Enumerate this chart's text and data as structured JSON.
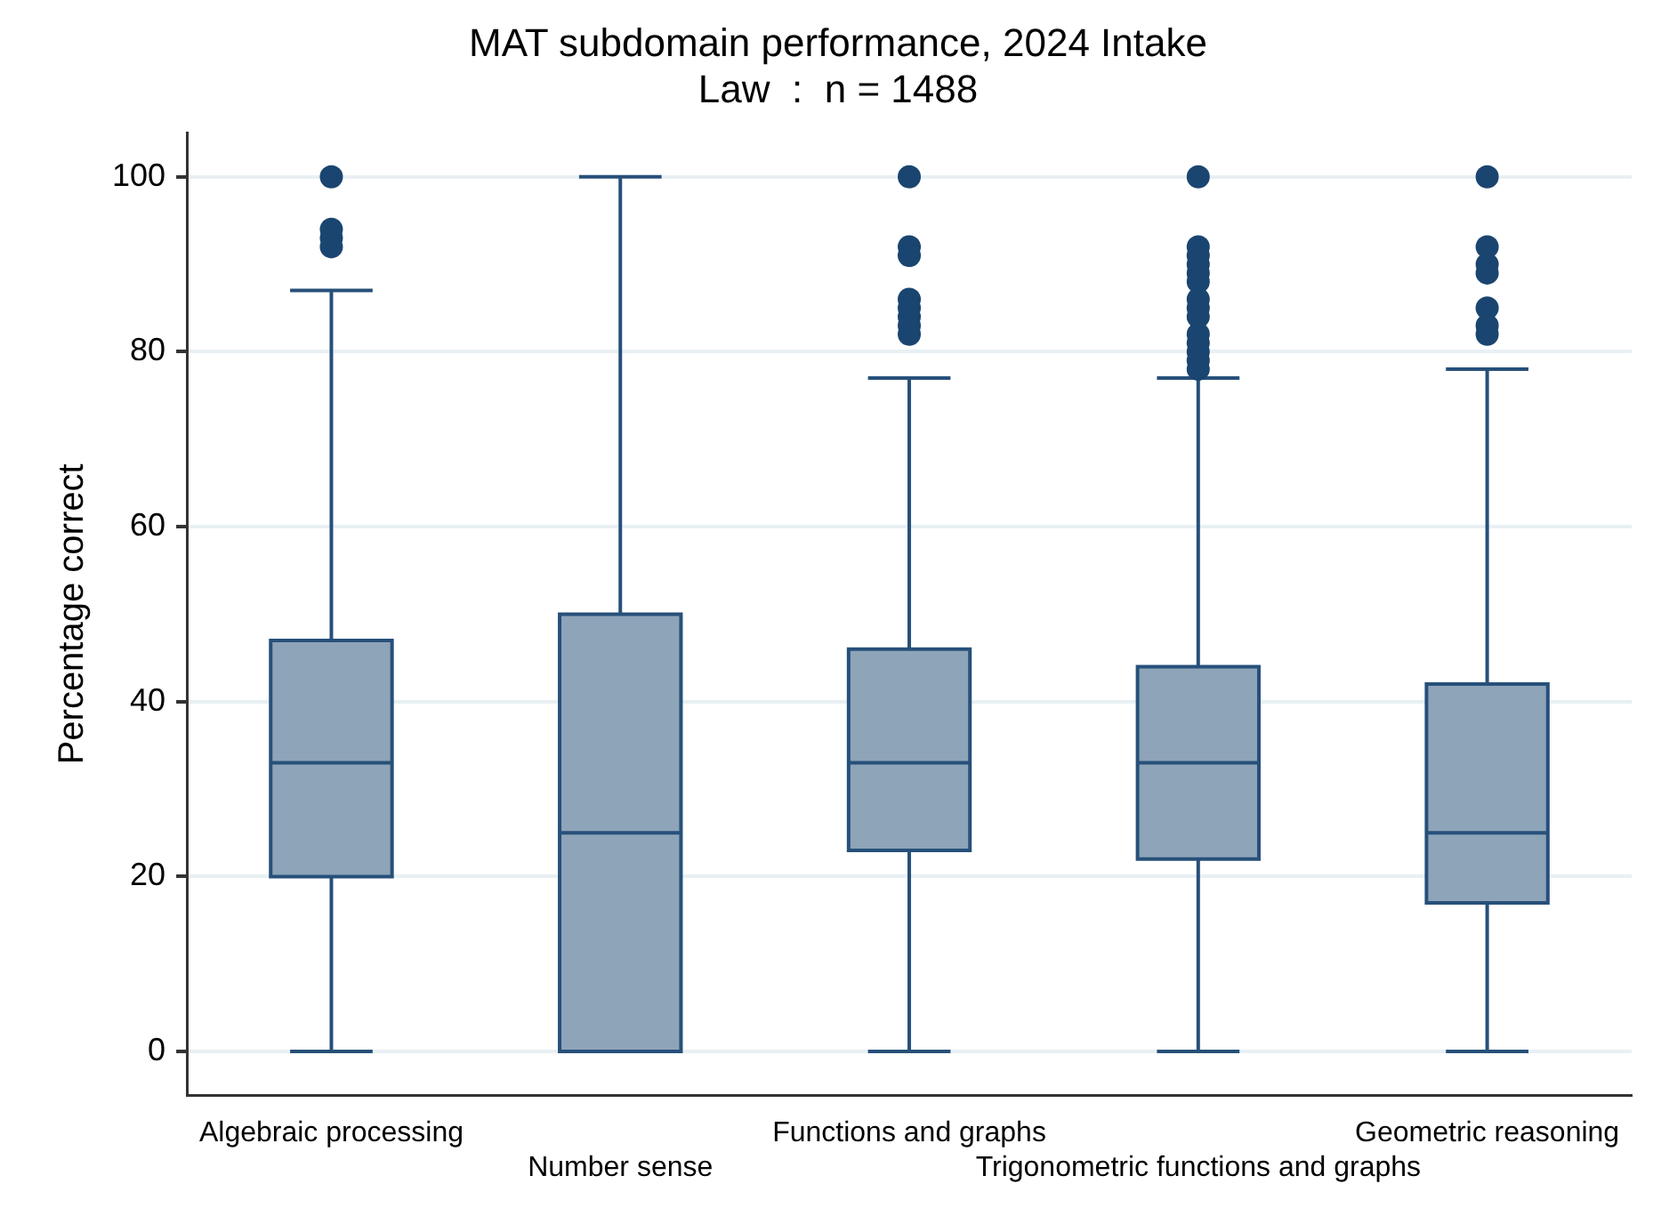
{
  "chart_data": {
    "type": "box",
    "title": "MAT subdomain performance, 2024 Intake",
    "subtitle": "Law  :  n = 1488",
    "ylabel": "Percentage correct",
    "categories": [
      "Algebraic processing",
      "Number sense",
      "Functions and graphs",
      "Trigonometric functions and graphs",
      "Geometric reasoning"
    ],
    "series": [
      {
        "color": "#8ea4b8",
        "boxes": [
          {
            "low": 0,
            "q1": 20,
            "median": 33,
            "q3": 47,
            "high": 87,
            "outliers": [
              100,
              94,
              93,
              92
            ]
          },
          {
            "low": 0,
            "q1": 0,
            "median": 25,
            "q3": 50,
            "high": 100
          },
          {
            "low": 0,
            "q1": 23,
            "median": 33,
            "q3": 46,
            "high": 77,
            "outliers": [
              100,
              92,
              91,
              86,
              85,
              84,
              83,
              82
            ]
          },
          {
            "low": 0,
            "q1": 22,
            "median": 33,
            "q3": 44,
            "high": 77,
            "outliers": [
              100,
              92,
              91,
              90,
              89,
              88,
              86,
              85,
              84,
              82,
              81,
              80,
              79,
              78
            ]
          },
          {
            "low": 0,
            "q1": 17,
            "median": 25,
            "q3": 42,
            "high": 78,
            "outliers": [
              100,
              92,
              90,
              89,
              85,
              83,
              82
            ]
          }
        ]
      }
    ],
    "ylim": [
      -5,
      105
    ],
    "yticks": [
      0,
      20,
      40,
      60,
      80,
      100
    ],
    "grid": "y",
    "legend": false
  }
}
